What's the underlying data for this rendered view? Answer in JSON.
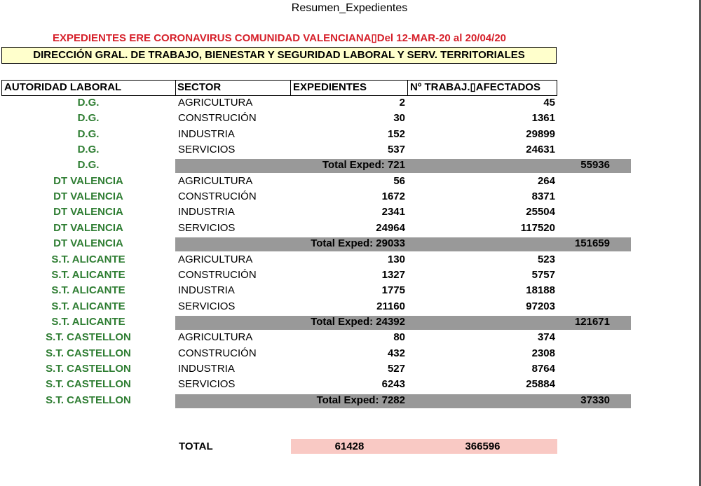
{
  "window_title": "Resumen_Expedientes",
  "title": "EXPEDIENTES ERE CORONAVIRUS COMUNIDAD VALENCIANA▯Del 12-MAR-20 al 20/04/20",
  "subtitle": "DIRECCIÓN GRAL. DE TRABAJO, BIENESTAR Y SEGURIDAD LABORAL Y SERV. TERRITORIALES",
  "table": {
    "headers": [
      "AUTORIDAD LABORAL",
      "SECTOR",
      "EXPEDIENTES",
      "Nº TRABAJ.▯AFECTADOS"
    ],
    "rows": [
      [
        "D.G.",
        "AGRICULTURA",
        2,
        45
      ],
      [
        "D.G.",
        "CONSTRUCIÓN",
        30,
        1361
      ],
      [
        "D.G.",
        "INDUSTRIA",
        152,
        29899
      ],
      [
        "D.G.",
        "SERVICIOS",
        537,
        24631
      ],
      [
        "D.G.",
        "Total Exped: 721",
        55936
      ],
      [
        "DT VALENCIA",
        "AGRICULTURA",
        56,
        264
      ],
      [
        "DT VALENCIA",
        "CONSTRUCIÓN",
        1672,
        8371
      ],
      [
        "DT VALENCIA",
        "INDUSTRIA",
        2341,
        25504
      ],
      [
        "DT VALENCIA",
        "SERVICIOS",
        24964,
        117520
      ],
      [
        "DT VALENCIA",
        "Total Exped: 29033",
        151659
      ],
      [
        "S.T. ALICANTE",
        "AGRICULTURA",
        130,
        523
      ],
      [
        "S.T. ALICANTE",
        "CONSTRUCIÓN",
        1327,
        5757
      ],
      [
        "S.T. ALICANTE",
        "INDUSTRIA",
        1775,
        18188
      ],
      [
        "S.T. ALICANTE",
        "SERVICIOS",
        21160,
        97203
      ],
      [
        "S.T. ALICANTE",
        "Total Exped: 24392",
        121671
      ],
      [
        "S.T. CASTELLON",
        "AGRICULTURA",
        80,
        374
      ],
      [
        "S.T. CASTELLON",
        "CONSTRUCIÓN",
        432,
        2308
      ],
      [
        "S.T. CASTELLON",
        "INDUSTRIA",
        527,
        8764
      ],
      [
        "S.T. CASTELLON",
        "SERVICIOS",
        6243,
        25884
      ],
      [
        "S.T. CASTELLON",
        "Total Exped: 7282",
        37330
      ]
    ]
  },
  "total": {
    "label": "TOTAL",
    "expedientes": 61428,
    "trabajadores": 366596
  }
}
